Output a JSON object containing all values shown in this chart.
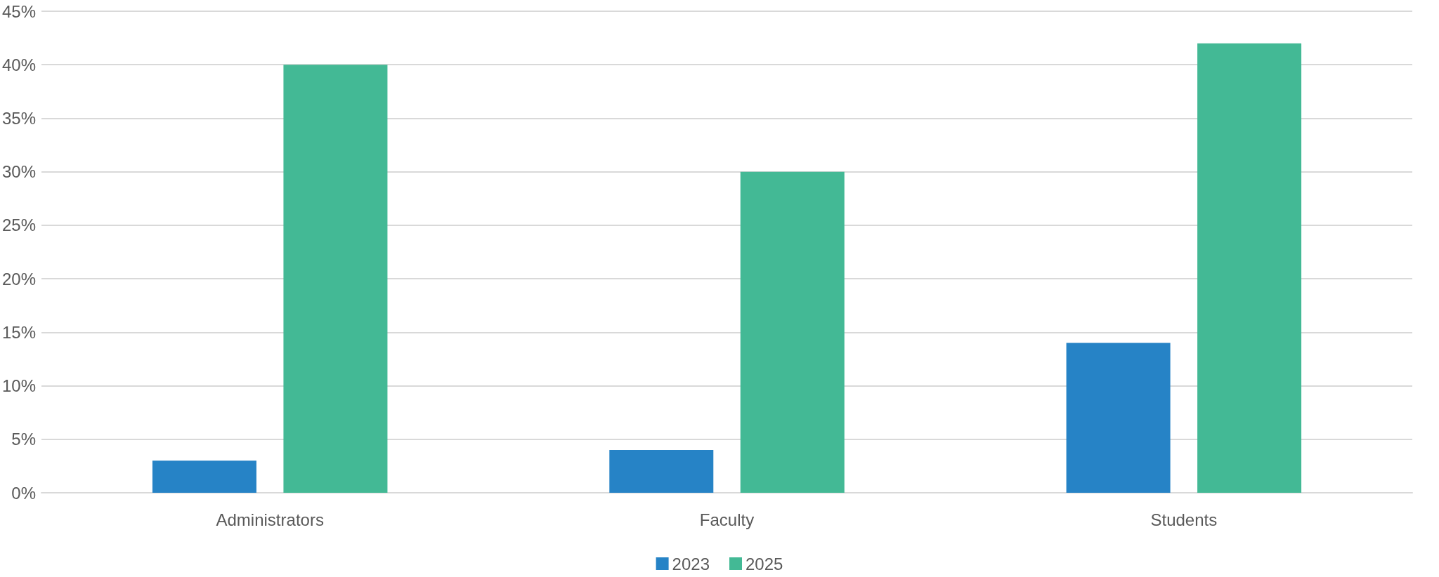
{
  "chart_data": {
    "type": "bar",
    "categories": [
      "Administrators",
      "Faculty",
      "Students"
    ],
    "series": [
      {
        "name": "2023",
        "color": "#2683c6",
        "values": [
          3,
          4,
          14
        ]
      },
      {
        "name": "2025",
        "color": "#43b995",
        "values": [
          40,
          30,
          42
        ]
      }
    ],
    "ylim": [
      0,
      45
    ],
    "yticks": [
      {
        "value": 0,
        "label": "0%"
      },
      {
        "value": 5,
        "label": "5%"
      },
      {
        "value": 10,
        "label": "10%"
      },
      {
        "value": 15,
        "label": "15%"
      },
      {
        "value": 20,
        "label": "20%"
      },
      {
        "value": 25,
        "label": "25%"
      },
      {
        "value": 30,
        "label": "30%"
      },
      {
        "value": 35,
        "label": "35%"
      },
      {
        "value": 40,
        "label": "40%"
      },
      {
        "value": 45,
        "label": "45%"
      }
    ],
    "grid": "y",
    "legend": "bottom"
  }
}
